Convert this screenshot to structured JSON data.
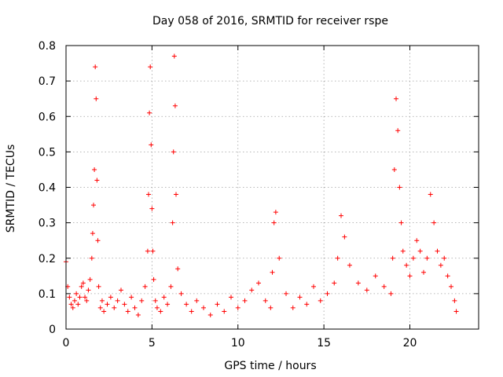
{
  "chart_data": {
    "type": "scatter",
    "title": "Day 058 of 2016, SRMTID for receiver rspe",
    "xlabel": "GPS time / hours",
    "ylabel": "SRMTID / TECUs",
    "xlim": [
      0,
      24
    ],
    "ylim": [
      0,
      0.8
    ],
    "xticks": [
      0,
      5,
      10,
      15,
      20
    ],
    "xtick_labels": [
      "0",
      "5",
      "10",
      "15",
      "20"
    ],
    "yticks": [
      0,
      0.1,
      0.2,
      0.3,
      0.4,
      0.5,
      0.6,
      0.7,
      0.8
    ],
    "ytick_labels": [
      "0",
      "0.1",
      "0.2",
      "0.3",
      "0.4",
      "0.5",
      "0.6",
      "0.7",
      "0.8"
    ],
    "grid": true,
    "marker": "+",
    "color": "#ff0000",
    "series": [
      {
        "name": "SRMTID",
        "x": [
          0.0,
          0.1,
          0.2,
          0.3,
          0.4,
          0.5,
          0.6,
          0.7,
          0.8,
          0.9,
          1.0,
          1.1,
          1.2,
          1.3,
          1.4,
          1.5,
          1.55,
          1.6,
          1.65,
          1.7,
          1.75,
          1.8,
          1.85,
          1.9,
          2.0,
          2.1,
          2.2,
          2.4,
          2.6,
          2.8,
          3.0,
          3.2,
          3.4,
          3.6,
          3.8,
          4.0,
          4.2,
          4.4,
          4.6,
          4.75,
          4.8,
          4.85,
          4.9,
          4.95,
          5.0,
          5.05,
          5.1,
          5.2,
          5.3,
          5.5,
          5.7,
          5.9,
          6.1,
          6.2,
          6.25,
          6.3,
          6.35,
          6.4,
          6.5,
          6.7,
          7.0,
          7.3,
          7.6,
          8.0,
          8.4,
          8.8,
          9.2,
          9.6,
          10.0,
          10.4,
          10.8,
          11.2,
          11.6,
          11.9,
          12.0,
          12.1,
          12.2,
          12.4,
          12.8,
          13.2,
          13.6,
          14.0,
          14.4,
          14.8,
          15.2,
          15.6,
          15.8,
          16.0,
          16.2,
          16.5,
          17.0,
          17.5,
          18.0,
          18.5,
          18.9,
          19.0,
          19.1,
          19.2,
          19.3,
          19.4,
          19.5,
          19.6,
          19.8,
          20.0,
          20.2,
          20.4,
          20.6,
          20.8,
          21.0,
          21.2,
          21.4,
          21.6,
          21.8,
          22.0,
          22.2,
          22.4,
          22.6,
          22.7
        ],
        "y": [
          0.19,
          0.12,
          0.09,
          0.07,
          0.06,
          0.08,
          0.1,
          0.07,
          0.09,
          0.12,
          0.13,
          0.09,
          0.08,
          0.11,
          0.14,
          0.2,
          0.27,
          0.35,
          0.45,
          0.74,
          0.65,
          0.42,
          0.25,
          0.12,
          0.06,
          0.08,
          0.05,
          0.07,
          0.09,
          0.06,
          0.08,
          0.11,
          0.07,
          0.05,
          0.09,
          0.06,
          0.04,
          0.08,
          0.12,
          0.22,
          0.38,
          0.61,
          0.74,
          0.52,
          0.34,
          0.22,
          0.14,
          0.08,
          0.06,
          0.05,
          0.09,
          0.07,
          0.12,
          0.3,
          0.5,
          0.77,
          0.63,
          0.38,
          0.17,
          0.1,
          0.07,
          0.05,
          0.08,
          0.06,
          0.04,
          0.07,
          0.05,
          0.09,
          0.06,
          0.08,
          0.11,
          0.13,
          0.08,
          0.06,
          0.16,
          0.3,
          0.33,
          0.2,
          0.1,
          0.06,
          0.09,
          0.07,
          0.12,
          0.08,
          0.1,
          0.13,
          0.2,
          0.32,
          0.26,
          0.18,
          0.13,
          0.11,
          0.15,
          0.12,
          0.1,
          0.2,
          0.45,
          0.65,
          0.56,
          0.4,
          0.3,
          0.22,
          0.18,
          0.15,
          0.2,
          0.25,
          0.22,
          0.16,
          0.2,
          0.38,
          0.3,
          0.22,
          0.18,
          0.2,
          0.15,
          0.12,
          0.08,
          0.05
        ]
      }
    ]
  }
}
